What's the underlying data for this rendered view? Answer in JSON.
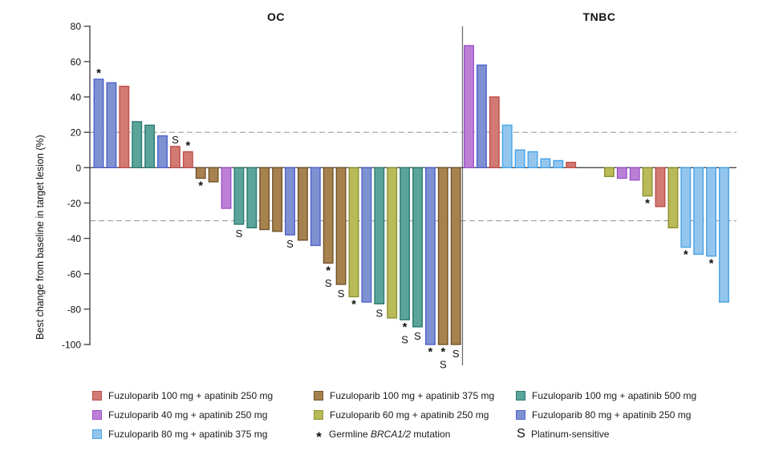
{
  "chart_data": {
    "type": "bar",
    "subtype": "waterfall",
    "ylabel": "Best change from baseline in target lesion (%)",
    "ylim": [
      -100,
      80
    ],
    "yticks": [
      80,
      60,
      40,
      20,
      0,
      -20,
      -40,
      -60,
      -80,
      -100
    ],
    "reference_lines": [
      20,
      -30
    ],
    "grid": "off",
    "legend_position": "bottom",
    "groups": {
      "fz100_ap250": {
        "label": "Fuzuloparib 100 mg + apatinib 250 mg",
        "fill": "#d27a74",
        "stroke": "#bf4f4b"
      },
      "fz100_ap375": {
        "label": "Fuzuloparib 100 mg + apatinib 375 mg",
        "fill": "#a7824e",
        "stroke": "#71532a"
      },
      "fz100_ap500": {
        "label": "Fuzuloparib 100 mg + apatinib 500 mg",
        "fill": "#5ba49a",
        "stroke": "#2b7a6f"
      },
      "fz40_ap250": {
        "label": "Fuzuloparib 40 mg + apatinib 250 mg",
        "fill": "#bb80d5",
        "stroke": "#9d52cb"
      },
      "fz60_ap250": {
        "label": "Fuzuloparib 60 mg + apatinib 250 mg",
        "fill": "#b9ba58",
        "stroke": "#8e9134"
      },
      "fz80_ap250": {
        "label": "Fuzuloparib 80 mg + apatinib 250 mg",
        "fill": "#7e91d1",
        "stroke": "#4f61cf"
      },
      "fz80_ap375": {
        "label": "Fuzuloparib 80 mg + apatinib 375 mg",
        "fill": "#94c6ed",
        "stroke": "#46a3e8"
      }
    },
    "markers": {
      "asterisk": {
        "symbol": "*",
        "label_parts": [
          "Germline ",
          {
            "i": "BRCA1/2"
          },
          " mutation"
        ]
      },
      "platinum": {
        "symbol": "S",
        "label_parts": [
          "Platinum-sensitive"
        ]
      }
    },
    "panels": [
      {
        "title": "OC",
        "bars": [
          {
            "v": 50,
            "g": "fz80_ap250",
            "m": "*"
          },
          {
            "v": 48,
            "g": "fz80_ap250",
            "m": ""
          },
          {
            "v": 46,
            "g": "fz100_ap250",
            "m": ""
          },
          {
            "v": 26,
            "g": "fz100_ap500",
            "m": ""
          },
          {
            "v": 24,
            "g": "fz100_ap500",
            "m": ""
          },
          {
            "v": 18,
            "g": "fz80_ap250",
            "m": ""
          },
          {
            "v": 12,
            "g": "fz100_ap250",
            "m": "S"
          },
          {
            "v": 9,
            "g": "fz100_ap250",
            "m": "*"
          },
          {
            "v": -6,
            "g": "fz100_ap375",
            "m": "*"
          },
          {
            "v": -8,
            "g": "fz100_ap375",
            "m": ""
          },
          {
            "v": -23,
            "g": "fz40_ap250",
            "m": ""
          },
          {
            "v": -32,
            "g": "fz100_ap500",
            "m": "S"
          },
          {
            "v": -34,
            "g": "fz100_ap500",
            "m": ""
          },
          {
            "v": -35,
            "g": "fz100_ap375",
            "m": ""
          },
          {
            "v": -36,
            "g": "fz100_ap375",
            "m": ""
          },
          {
            "v": -38,
            "g": "fz80_ap250",
            "m": "S"
          },
          {
            "v": -41,
            "g": "fz100_ap375",
            "m": ""
          },
          {
            "v": -44,
            "g": "fz80_ap250",
            "m": ""
          },
          {
            "v": -54,
            "g": "fz100_ap375",
            "m": "*S"
          },
          {
            "v": -66,
            "g": "fz100_ap375",
            "m": "S"
          },
          {
            "v": -73,
            "g": "fz60_ap250",
            "m": "*"
          },
          {
            "v": -76,
            "g": "fz80_ap250",
            "m": ""
          },
          {
            "v": -77,
            "g": "fz100_ap500",
            "m": "S"
          },
          {
            "v": -85,
            "g": "fz60_ap250",
            "m": ""
          },
          {
            "v": -86,
            "g": "fz100_ap500",
            "m": "*S"
          },
          {
            "v": -90,
            "g": "fz100_ap500",
            "m": "S"
          },
          {
            "v": -100,
            "g": "fz80_ap250",
            "m": "*"
          },
          {
            "v": -100,
            "g": "fz100_ap375",
            "m": "*S"
          },
          {
            "v": -100,
            "g": "fz100_ap375",
            "m": "S"
          }
        ]
      },
      {
        "title": "TNBC",
        "bars": [
          {
            "v": 69,
            "g": "fz40_ap250",
            "m": ""
          },
          {
            "v": 58,
            "g": "fz80_ap250",
            "m": ""
          },
          {
            "v": 40,
            "g": "fz100_ap250",
            "m": ""
          },
          {
            "v": 24,
            "g": "fz80_ap375",
            "m": ""
          },
          {
            "v": 10,
            "g": "fz80_ap375",
            "m": ""
          },
          {
            "v": 9,
            "g": "fz80_ap375",
            "m": ""
          },
          {
            "v": 5,
            "g": "fz80_ap375",
            "m": ""
          },
          {
            "v": 4,
            "g": "fz80_ap375",
            "m": ""
          },
          {
            "v": 3,
            "g": "fz100_ap250",
            "m": ""
          },
          {
            "v": 0,
            "g": null,
            "m": ""
          },
          {
            "v": 0,
            "g": null,
            "m": ""
          },
          {
            "v": -5,
            "g": "fz60_ap250",
            "m": ""
          },
          {
            "v": -6,
            "g": "fz40_ap250",
            "m": ""
          },
          {
            "v": -7,
            "g": "fz40_ap250",
            "m": ""
          },
          {
            "v": -16,
            "g": "fz60_ap250",
            "m": "*"
          },
          {
            "v": -22,
            "g": "fz100_ap250",
            "m": ""
          },
          {
            "v": -34,
            "g": "fz60_ap250",
            "m": ""
          },
          {
            "v": -45,
            "g": "fz80_ap375",
            "m": "*"
          },
          {
            "v": -49,
            "g": "fz80_ap375",
            "m": ""
          },
          {
            "v": -50,
            "g": "fz80_ap375",
            "m": "*"
          },
          {
            "v": -76,
            "g": "fz80_ap375",
            "m": ""
          }
        ]
      }
    ],
    "legend": {
      "entries": [
        {
          "swatch": "fz100_ap250"
        },
        {
          "swatch": "fz100_ap375"
        },
        {
          "swatch": "fz100_ap500"
        },
        {
          "swatch": "fz40_ap250"
        },
        {
          "swatch": "fz60_ap250"
        },
        {
          "swatch": "fz80_ap250"
        },
        {
          "swatch": "fz80_ap375"
        },
        {
          "marker": "asterisk"
        },
        {
          "marker": "platinum"
        }
      ]
    }
  }
}
